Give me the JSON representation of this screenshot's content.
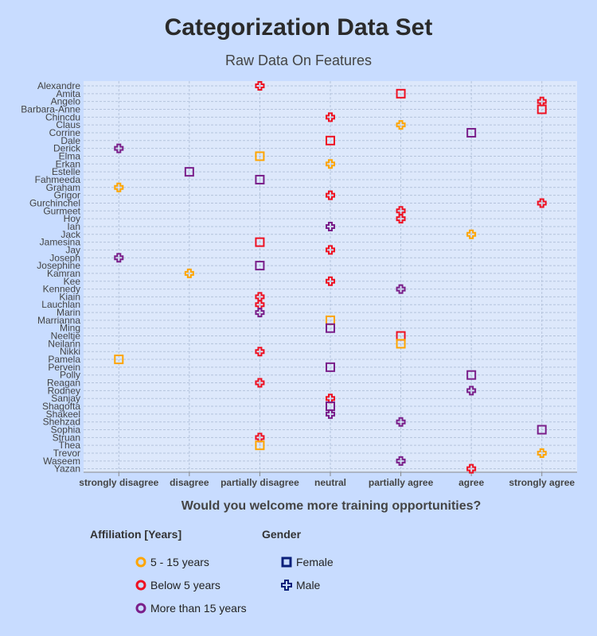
{
  "chart_data": {
    "type": "scatter",
    "title": "Categorization Data Set",
    "subtitle": "Raw Data On Features",
    "xlabel": "Would you welcome more training opportunities?",
    "ylabel": "",
    "x_categories": [
      "strongly disagree",
      "disagree",
      "partially disagree",
      "neutral",
      "partially agree",
      "agree",
      "strongly agree"
    ],
    "grid": true,
    "colors": {
      "5 - 15 years": "#ffa500",
      "Below 5 years": "#ee1122",
      "More than 15 years": "#7a1f8a"
    },
    "points": [
      {
        "name": "Alexandre",
        "answer": "partially disagree",
        "affiliation": "Below 5 years",
        "gender": "Male"
      },
      {
        "name": "Amita",
        "answer": "partially agree",
        "affiliation": "Below 5 years",
        "gender": "Female"
      },
      {
        "name": "Angelo",
        "answer": "strongly agree",
        "affiliation": "Below 5 years",
        "gender": "Male"
      },
      {
        "name": "Barbara-Anne",
        "answer": "strongly agree",
        "affiliation": "Below 5 years",
        "gender": "Female"
      },
      {
        "name": "Chincdu",
        "answer": "neutral",
        "affiliation": "Below 5 years",
        "gender": "Male"
      },
      {
        "name": "Claus",
        "answer": "partially agree",
        "affiliation": "5 - 15 years",
        "gender": "Male"
      },
      {
        "name": "Corrine",
        "answer": "agree",
        "affiliation": "More than 15 years",
        "gender": "Female"
      },
      {
        "name": "Dale",
        "answer": "neutral",
        "affiliation": "Below 5 years",
        "gender": "Female"
      },
      {
        "name": "Derick",
        "answer": "strongly disagree",
        "affiliation": "More than 15 years",
        "gender": "Male"
      },
      {
        "name": "Elma",
        "answer": "partially disagree",
        "affiliation": "5 - 15 years",
        "gender": "Female"
      },
      {
        "name": "Erkan",
        "answer": "neutral",
        "affiliation": "5 - 15 years",
        "gender": "Male"
      },
      {
        "name": "Estelle",
        "answer": "disagree",
        "affiliation": "More than 15 years",
        "gender": "Female"
      },
      {
        "name": "Fahmeeda",
        "answer": "partially disagree",
        "affiliation": "More than 15 years",
        "gender": "Female"
      },
      {
        "name": "Graham",
        "answer": "strongly disagree",
        "affiliation": "5 - 15 years",
        "gender": "Male"
      },
      {
        "name": "Grigor",
        "answer": "neutral",
        "affiliation": "Below 5 years",
        "gender": "Male"
      },
      {
        "name": "Gurchinchel",
        "answer": "strongly agree",
        "affiliation": "Below 5 years",
        "gender": "Male"
      },
      {
        "name": "Gurmeet",
        "answer": "partially agree",
        "affiliation": "Below 5 years",
        "gender": "Male"
      },
      {
        "name": "Hoy",
        "answer": "partially agree",
        "affiliation": "Below 5 years",
        "gender": "Male"
      },
      {
        "name": "Ian",
        "answer": "neutral",
        "affiliation": "More than 15 years",
        "gender": "Male"
      },
      {
        "name": "Jack",
        "answer": "agree",
        "affiliation": "5 - 15 years",
        "gender": "Male"
      },
      {
        "name": "Jamesina",
        "answer": "partially disagree",
        "affiliation": "Below 5 years",
        "gender": "Female"
      },
      {
        "name": "Jay",
        "answer": "neutral",
        "affiliation": "Below 5 years",
        "gender": "Male"
      },
      {
        "name": "Joseph",
        "answer": "strongly disagree",
        "affiliation": "More than 15 years",
        "gender": "Male"
      },
      {
        "name": "Josephine",
        "answer": "partially disagree",
        "affiliation": "More than 15 years",
        "gender": "Female"
      },
      {
        "name": "Kamran",
        "answer": "disagree",
        "affiliation": "5 - 15 years",
        "gender": "Male"
      },
      {
        "name": "Kee",
        "answer": "neutral",
        "affiliation": "Below 5 years",
        "gender": "Male"
      },
      {
        "name": "Kennedy",
        "answer": "partially agree",
        "affiliation": "More than 15 years",
        "gender": "Male"
      },
      {
        "name": "Kiain",
        "answer": "partially disagree",
        "affiliation": "Below 5 years",
        "gender": "Male"
      },
      {
        "name": "Lauchlan",
        "answer": "partially disagree",
        "affiliation": "Below 5 years",
        "gender": "Male"
      },
      {
        "name": "Marin",
        "answer": "partially disagree",
        "affiliation": "More than 15 years",
        "gender": "Male"
      },
      {
        "name": "Marrianna",
        "answer": "neutral",
        "affiliation": "5 - 15 years",
        "gender": "Female"
      },
      {
        "name": "Ming",
        "answer": "neutral",
        "affiliation": "More than 15 years",
        "gender": "Female"
      },
      {
        "name": "Neeltje",
        "answer": "partially agree",
        "affiliation": "Below 5 years",
        "gender": "Female"
      },
      {
        "name": "Neilann",
        "answer": "partially agree",
        "affiliation": "5 - 15 years",
        "gender": "Female"
      },
      {
        "name": "Nikki",
        "answer": "partially disagree",
        "affiliation": "Below 5 years",
        "gender": "Male"
      },
      {
        "name": "Pamela",
        "answer": "strongly disagree",
        "affiliation": "5 - 15 years",
        "gender": "Female"
      },
      {
        "name": "Pervein",
        "answer": "neutral",
        "affiliation": "More than 15 years",
        "gender": "Female"
      },
      {
        "name": "Polly",
        "answer": "agree",
        "affiliation": "More than 15 years",
        "gender": "Female"
      },
      {
        "name": "Reagan",
        "answer": "partially disagree",
        "affiliation": "Below 5 years",
        "gender": "Male"
      },
      {
        "name": "Rodney",
        "answer": "agree",
        "affiliation": "More than 15 years",
        "gender": "Male"
      },
      {
        "name": "Sanjay",
        "answer": "neutral",
        "affiliation": "Below 5 years",
        "gender": "Male"
      },
      {
        "name": "Shagofta",
        "answer": "neutral",
        "affiliation": "More than 15 years",
        "gender": "Female"
      },
      {
        "name": "Shakeel",
        "answer": "neutral",
        "affiliation": "More than 15 years",
        "gender": "Male"
      },
      {
        "name": "Shehzad",
        "answer": "partially agree",
        "affiliation": "More than 15 years",
        "gender": "Male"
      },
      {
        "name": "Sophia",
        "answer": "strongly agree",
        "affiliation": "More than 15 years",
        "gender": "Female"
      },
      {
        "name": "Struan",
        "answer": "partially disagree",
        "affiliation": "Below 5 years",
        "gender": "Male"
      },
      {
        "name": "Thea",
        "answer": "partially disagree",
        "affiliation": "5 - 15 years",
        "gender": "Female"
      },
      {
        "name": "Trevor",
        "answer": "strongly agree",
        "affiliation": "5 - 15 years",
        "gender": "Male"
      },
      {
        "name": "Waseem",
        "answer": "partially agree",
        "affiliation": "More than 15 years",
        "gender": "Male"
      },
      {
        "name": "Yazan",
        "answer": "agree",
        "affiliation": "Below 5 years",
        "gender": "Male"
      }
    ],
    "legend": {
      "affiliation_title": "Affiliation [Years]",
      "affiliation_items": [
        "5 - 15 years",
        "Below 5 years",
        "More than 15 years"
      ],
      "gender_title": "Gender",
      "gender_items": [
        "Female",
        "Male"
      ],
      "gender_legend_color": "#0a1f7a"
    }
  }
}
